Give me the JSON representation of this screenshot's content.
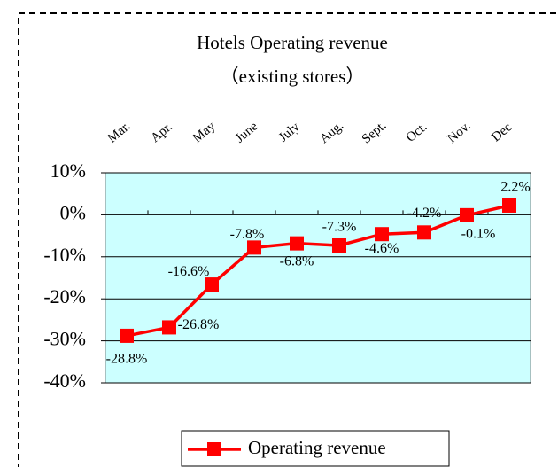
{
  "chart_data": {
    "type": "line",
    "title": "Hotels   Operating revenue",
    "subtitle": "（existing stores）",
    "categories": [
      "Mar.",
      "Apr.",
      "May",
      "June",
      "July",
      "Aug.",
      "Sept.",
      "Oct.",
      "Nov.",
      "Dec"
    ],
    "series": [
      {
        "name": "Operating revenue",
        "color": "#ff0000",
        "values": [
          -28.8,
          -26.8,
          -16.6,
          -7.8,
          -6.8,
          -7.3,
          -4.6,
          -4.2,
          -0.1,
          2.2
        ],
        "value_labels": [
          "-28.8%",
          "-26.8%",
          "-16.6%",
          "-7.8%",
          "-6.8%",
          "-7.3%",
          "-4.6%",
          "-4.2%",
          "-0.1%",
          "2.2%"
        ]
      }
    ],
    "ylim": [
      -40,
      10
    ],
    "yticks": [
      {
        "value": -40,
        "label": "-40%"
      },
      {
        "value": -30,
        "label": "-30%"
      },
      {
        "value": -20,
        "label": "-20%"
      },
      {
        "value": -10,
        "label": "-10%"
      },
      {
        "value": 0,
        "label": "0%"
      },
      {
        "value": 10,
        "label": "10%"
      }
    ],
    "grid": true,
    "background": "#ccffff",
    "legend": "bottom"
  }
}
